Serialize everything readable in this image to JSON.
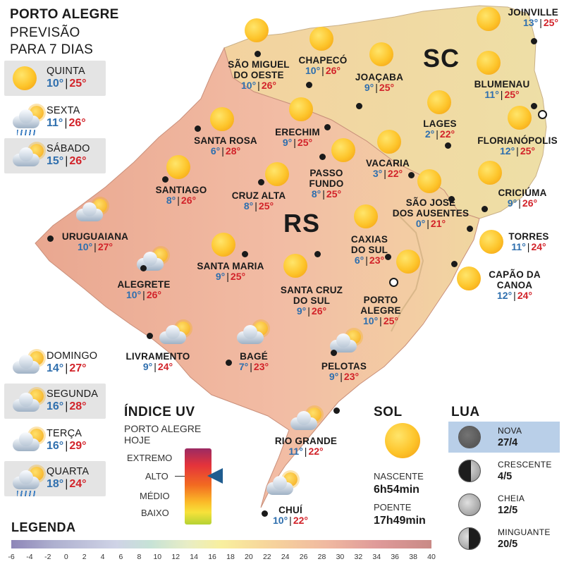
{
  "header": {
    "city": "PORTO ALEGRE",
    "line1": "PREVISÃO",
    "line2": "PARA 7 DIAS"
  },
  "forecast": [
    {
      "day": "QUINTA",
      "min": "10°",
      "max": "25°",
      "icon": "sun-icon"
    },
    {
      "day": "SEXTA",
      "min": "11°",
      "max": "26°",
      "icon": "sun-rain-icon"
    },
    {
      "day": "SÁBADO",
      "min": "15°",
      "max": "26°",
      "icon": "partly-cloudy-icon"
    },
    {
      "day": "DOMINGO",
      "min": "14°",
      "max": "27°",
      "icon": "partly-cloudy-icon"
    },
    {
      "day": "SEGUNDA",
      "min": "16°",
      "max": "28°",
      "icon": "partly-cloudy-icon"
    },
    {
      "day": "TERÇA",
      "min": "16°",
      "max": "29°",
      "icon": "partly-cloudy-icon"
    },
    {
      "day": "QUARTA",
      "min": "18°",
      "max": "24°",
      "icon": "sun-rain-icon"
    }
  ],
  "states": {
    "sc": "SC",
    "rs": "RS"
  },
  "cities": [
    {
      "name": "JOINVILLE",
      "min": "13°",
      "max": "25°",
      "icon": "sun-icon"
    },
    {
      "name": "SÃO MIGUEL\nDO OESTE",
      "min": "10°",
      "max": "26°",
      "icon": "sun-icon"
    },
    {
      "name": "CHAPECÓ",
      "min": "10°",
      "max": "26°",
      "icon": "sun-icon"
    },
    {
      "name": "JOAÇABA",
      "min": "9°",
      "max": "25°",
      "icon": "sun-icon"
    },
    {
      "name": "BLUMENAU",
      "min": "11°",
      "max": "25°",
      "icon": "sun-icon"
    },
    {
      "name": "LAGES",
      "min": "2°",
      "max": "22°",
      "icon": "sun-icon"
    },
    {
      "name": "FLORIANÓPOLIS",
      "min": "12°",
      "max": "25°",
      "icon": "sun-icon"
    },
    {
      "name": "SANTA ROSA",
      "min": "6°",
      "max": "28°",
      "icon": "sun-icon"
    },
    {
      "name": "ERECHIM",
      "min": "9°",
      "max": "25°",
      "icon": "sun-icon"
    },
    {
      "name": "VACARIA",
      "min": "3°",
      "max": "22°",
      "icon": "sun-icon"
    },
    {
      "name": "PASSO\nFUNDO",
      "min": "8°",
      "max": "25°",
      "icon": "sun-icon"
    },
    {
      "name": "SANTIAGO",
      "min": "8°",
      "max": "26°",
      "icon": "sun-icon"
    },
    {
      "name": "CRUZ ALTA",
      "min": "8°",
      "max": "25°",
      "icon": "sun-icon"
    },
    {
      "name": "SÃO JOSÉ\nDOS AUSENTES",
      "min": "0°",
      "max": "21°",
      "icon": "sun-icon"
    },
    {
      "name": "CRICIÚMA",
      "min": "9°",
      "max": "26°",
      "icon": "sun-icon"
    },
    {
      "name": "URUGUAIANA",
      "min": "10°",
      "max": "27°",
      "icon": "partly-cloudy-icon"
    },
    {
      "name": "CAXIAS\nDO SUL",
      "min": "6°",
      "max": "23°",
      "icon": "sun-icon"
    },
    {
      "name": "TORRES",
      "min": "11°",
      "max": "24°",
      "icon": "sun-icon"
    },
    {
      "name": "SANTA MARIA",
      "min": "9°",
      "max": "25°",
      "icon": "sun-icon"
    },
    {
      "name": "ALEGRETE",
      "min": "10°",
      "max": "26°",
      "icon": "partly-cloudy-icon"
    },
    {
      "name": "SANTA CRUZ\nDO SUL",
      "min": "9°",
      "max": "26°",
      "icon": "sun-icon"
    },
    {
      "name": "CAPÃO DA\nCANOA",
      "min": "12°",
      "max": "24°",
      "icon": "sun-icon"
    },
    {
      "name": "PORTO\nALEGRE",
      "min": "10°",
      "max": "25°",
      "icon": "sun-icon"
    },
    {
      "name": "LIVRAMENTO",
      "min": "9°",
      "max": "24°",
      "icon": "partly-cloudy-icon"
    },
    {
      "name": "BAGÉ",
      "min": "7°",
      "max": "23°",
      "icon": "partly-cloudy-icon"
    },
    {
      "name": "PELOTAS",
      "min": "9°",
      "max": "23°",
      "icon": "partly-cloudy-icon"
    },
    {
      "name": "RIO GRANDE",
      "min": "11°",
      "max": "22°",
      "icon": "partly-cloudy-icon"
    },
    {
      "name": "CHUÍ",
      "min": "10°",
      "max": "22°",
      "icon": "partly-cloudy-icon"
    }
  ],
  "uv": {
    "title": "ÍNDICE UV",
    "sub1": "PORTO ALEGRE",
    "sub2": "HOJE",
    "levels": [
      "EXTREMO",
      "ALTO",
      "MÉDIO",
      "BAIXO"
    ],
    "current": "ALTO"
  },
  "sun": {
    "title": "SOL",
    "rise_label": "NASCENTE",
    "rise": "6h54min",
    "set_label": "POENTE",
    "set": "17h49min"
  },
  "moon": {
    "title": "LUA",
    "phases": [
      {
        "name": "NOVA",
        "date": "27/4",
        "icon": "new-moon-icon"
      },
      {
        "name": "CRESCENTE",
        "date": "4/5",
        "icon": "waxing-moon-icon"
      },
      {
        "name": "CHEIA",
        "date": "12/5",
        "icon": "full-moon-icon"
      },
      {
        "name": "MINGUANTE",
        "date": "20/5",
        "icon": "waning-moon-icon"
      }
    ]
  },
  "legend": {
    "title": "LEGENDA",
    "ticks": [
      "-6",
      "-4",
      "-2",
      "0",
      "2",
      "4",
      "6",
      "8",
      "10",
      "12",
      "14",
      "16",
      "18",
      "20",
      "22",
      "24",
      "26",
      "28",
      "30",
      "32",
      "34",
      "36",
      "38",
      "40"
    ]
  },
  "colors": {
    "min_temp": "#2f6fae",
    "max_temp": "#d2232a",
    "rs_fill": "#f0b7a0",
    "sc_fill": "#f2e1a8"
  }
}
